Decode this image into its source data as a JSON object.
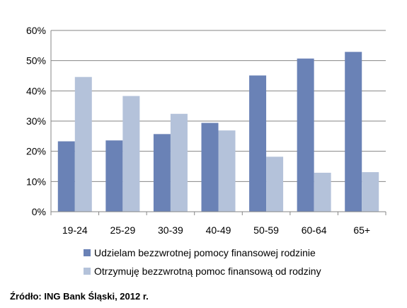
{
  "chart_data": {
    "type": "bar",
    "categories": [
      "19-24",
      "25-29",
      "30-39",
      "40-49",
      "50-59",
      "60-64",
      "65+"
    ],
    "series": [
      {
        "name": "Udzielam bezzwrotnej pomocy finansowej rodzinie",
        "values": [
          23.3,
          23.6,
          25.7,
          29.4,
          45.1,
          50.7,
          52.9
        ],
        "color": "#6a82b6"
      },
      {
        "name": "Otrzymuję bezzwrotną pomoc finansową od rodziny",
        "values": [
          44.6,
          38.3,
          32.4,
          26.9,
          18.2,
          12.9,
          13.1
        ],
        "color": "#b4c2da"
      }
    ],
    "y_ticks": [
      "0%",
      "10%",
      "20%",
      "30%",
      "40%",
      "50%",
      "60%"
    ],
    "ylim": [
      0,
      60
    ],
    "grid": true,
    "legend_position": "bottom"
  },
  "source": "Źródło: ING Bank Śląski, 2012 r."
}
